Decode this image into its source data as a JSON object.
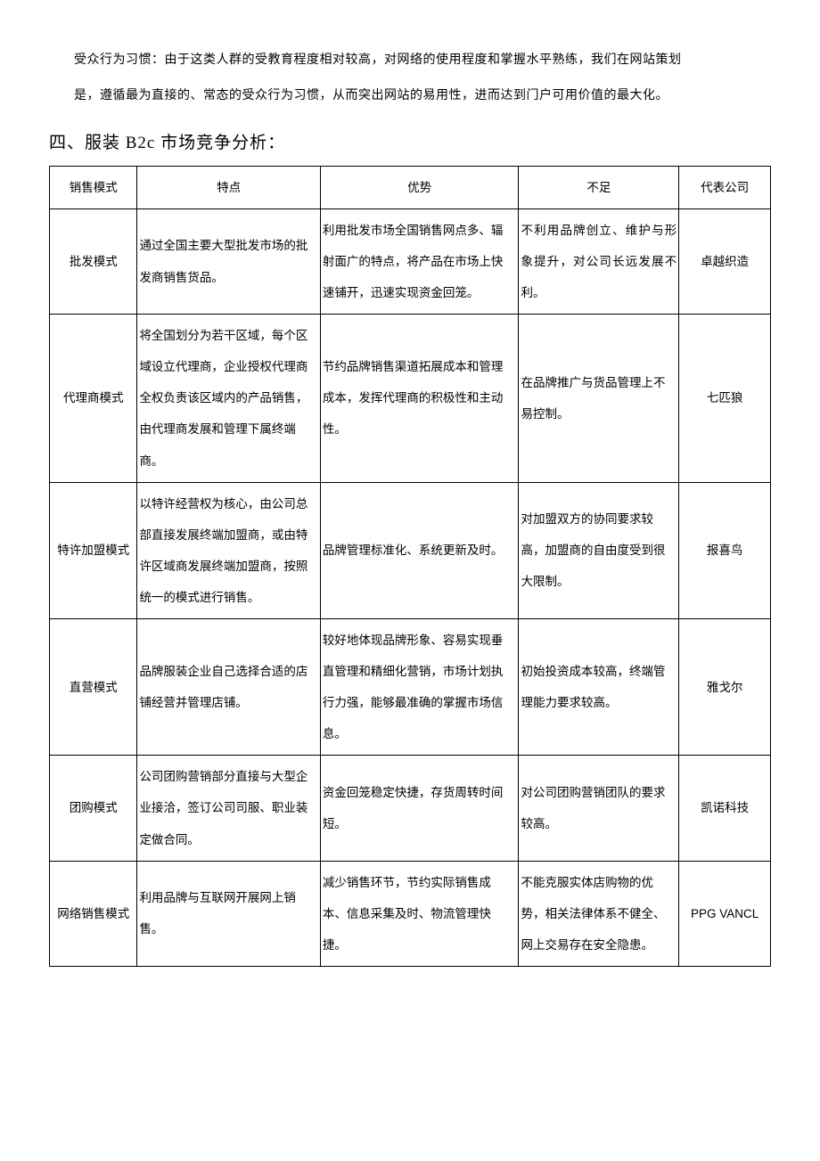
{
  "intro": {
    "para1": "受众行为习惯：由于这类人群的受教育程度相对较高，对网络的使用程度和掌握水平熟练，我们在网站策划",
    "para2": "是，遵循最为直接的、常态的受众行为习惯，从而突出网站的易用性，进而达到门户可用价值的最大化。"
  },
  "heading": {
    "full": "四、服装 B2c 市场竞争分析："
  },
  "table": {
    "headers": {
      "mode": "销售模式",
      "feature": "特点",
      "advantage": "优势",
      "shortcoming": "不足",
      "company": "代表公司"
    },
    "rows": [
      {
        "mode": "批发模式",
        "feature": "通过全国主要大型批发市场的批发商销售货品。",
        "advantage": "利用批发市场全国销售网点多、辐射面广的特点，将产品在市场上快速铺开，迅速实现资金回笼。",
        "shortcoming": "不利用品牌创立、维护与形象提升，对公司长远发展不利。",
        "company": "卓越织造"
      },
      {
        "mode": "代理商模式",
        "feature": "将全国划分为若干区域，每个区域设立代理商，企业授权代理商全权负责该区域内的产品销售，由代理商发展和管理下属终端商。",
        "advantage": "节约品牌销售渠道拓展成本和管理成本，发挥代理商的积极性和主动性。",
        "shortcoming": "在品牌推广与货品管理上不易控制。",
        "company": "七匹狼"
      },
      {
        "mode": "特许加盟模式",
        "feature": "以特许经营权为核心，由公司总部直接发展终端加盟商，或由特许区域商发展终端加盟商，按照统一的模式进行销售。",
        "advantage": "品牌管理标准化、系统更新及时。",
        "shortcoming": "对加盟双方的协同要求较高，加盟商的自由度受到很大限制。",
        "company": "报喜鸟"
      },
      {
        "mode": "直营模式",
        "feature": "品牌服装企业自己选择合适的店铺经营并管理店铺。",
        "advantage": "较好地体现品牌形象、容易实现垂直管理和精细化营销，市场计划执行力强，能够最准确的掌握市场信息。",
        "shortcoming": "初始投资成本较高，终端管理能力要求较高。",
        "company": "雅戈尔"
      },
      {
        "mode": "团购模式",
        "feature": "公司团购营销部分直接与大型企业接洽，签订公司司服、职业装定做合同。",
        "advantage": "资金回笼稳定快捷，存货周转时间短。",
        "shortcoming": "对公司团购营销团队的要求较高。",
        "company": "凯诺科技"
      },
      {
        "mode": "网络销售模式",
        "feature": "利用品牌与互联网开展网上销售。",
        "advantage": "减少销售环节，节约实际销售成本、信息采集及时、物流管理快捷。",
        "shortcoming": "不能克服实体店购物的优势，相关法律体系不健全、网上交易存在安全隐患。",
        "company": "PPG VANCL"
      }
    ]
  },
  "style": {
    "background_color": "#ffffff",
    "text_color": "#000000",
    "border_color": "#000000",
    "body_font_size": 14,
    "heading_font_size": 19,
    "table_font_size": 13.5,
    "line_height": 2.6
  }
}
